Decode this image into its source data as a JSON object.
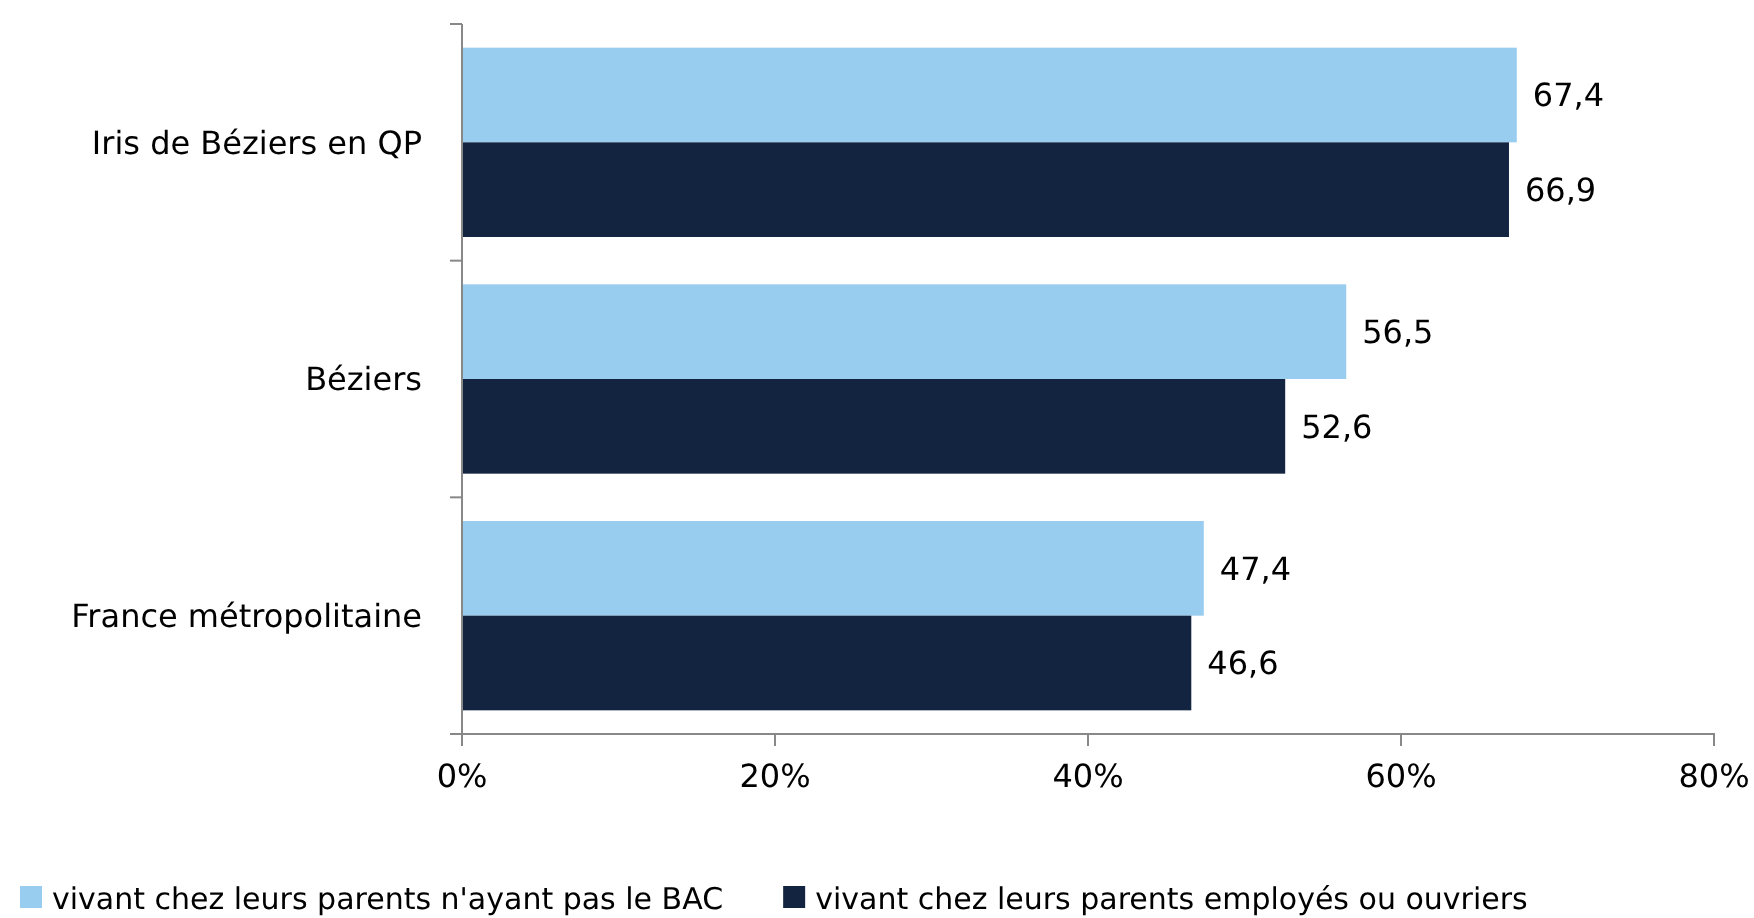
{
  "chart_data": {
    "type": "bar",
    "orientation": "horizontal",
    "categories": [
      "Iris de Béziers en QP",
      "Béziers",
      "France métropolitaine"
    ],
    "series": [
      {
        "name": "vivant chez leurs parents n'ayant pas le BAC",
        "color": "#99cdf0",
        "values": [
          67.4,
          56.5,
          47.4
        ],
        "value_labels": [
          "67,4",
          "56,5",
          "47,4"
        ]
      },
      {
        "name": "vivant chez leurs parents employés ou ouvriers",
        "color": "#12243f",
        "values": [
          66.9,
          52.6,
          46.6
        ],
        "value_labels": [
          "66,9",
          "52,6",
          "46,6"
        ]
      }
    ],
    "xlim": [
      0,
      80
    ],
    "xticks": [
      {
        "value": 0,
        "label": "0%"
      },
      {
        "value": 20,
        "label": "20%"
      },
      {
        "value": 40,
        "label": "40%"
      },
      {
        "value": 60,
        "label": "60%"
      },
      {
        "value": 80,
        "label": "80%"
      }
    ],
    "grid": false,
    "legend": "bottom"
  }
}
